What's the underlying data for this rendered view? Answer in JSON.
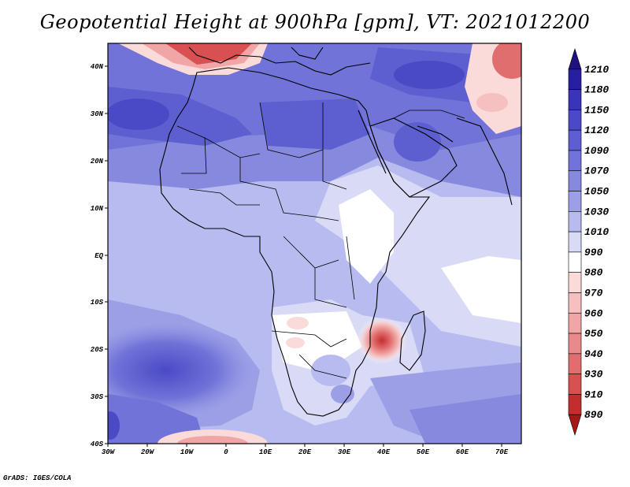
{
  "title": "Geopotential Height at 900hPa [gpm], VT: 2021012200",
  "footer": "GrADS: IGES/COLA",
  "axes": {
    "lat_labels": [
      "40N",
      "30N",
      "20N",
      "10N",
      "EQ",
      "10S",
      "20S",
      "30S",
      "40S"
    ],
    "lon_labels": [
      "30W",
      "20W",
      "10W",
      "0",
      "10E",
      "20E",
      "30E",
      "40E",
      "50E",
      "60E",
      "70E"
    ]
  },
  "colorbar": {
    "levels": [
      "1210",
      "1180",
      "1150",
      "1120",
      "1090",
      "1070",
      "1050",
      "1030",
      "1010",
      "990",
      "980",
      "970",
      "960",
      "950",
      "940",
      "930",
      "910",
      "890"
    ],
    "colors": [
      "#1d127f",
      "#281fa0",
      "#3a35b8",
      "#4b4ac6",
      "#5d5fd0",
      "#7173d8",
      "#8789df",
      "#9c9fe6",
      "#b8bbef",
      "#d8daf6",
      "#ffffff",
      "#fbdada",
      "#f6c0c0",
      "#f0a6a6",
      "#e98a8a",
      "#e16e6e",
      "#d95050",
      "#c42d2d",
      "#a61818"
    ]
  },
  "map": {
    "region": "Africa and surroundings",
    "lon_range": [
      -30,
      75
    ],
    "lat_range": [
      -40,
      45
    ],
    "features": [
      "cyclone-low-mozambique",
      "high-ridge-north-atlantic",
      "high-ridge-south-atlantic",
      "low-iberia",
      "low-northern-india"
    ]
  }
}
